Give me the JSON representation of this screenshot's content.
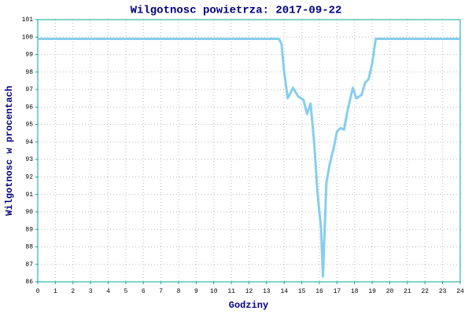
{
  "chart_data": {
    "type": "line",
    "title": "Wilgotnosc powietrza: 2017-09-22",
    "x_label": "Godziny",
    "y_label": "Wilgotnosc w procentach",
    "series": [
      {
        "name": "Wilgotnosc",
        "color": "#87ceeb",
        "x": [
          0,
          13.7,
          13.85,
          14.0,
          14.2,
          14.5,
          14.8,
          15.1,
          15.3,
          15.5,
          15.7,
          15.9,
          16.1,
          16.2,
          16.4,
          16.6,
          16.8,
          17.0,
          17.2,
          17.4,
          17.6,
          17.9,
          18.1,
          18.4,
          18.6,
          18.8,
          19.0,
          19.2,
          24
        ],
        "values": [
          99.9,
          99.9,
          99.6,
          98,
          96.5,
          97.1,
          96.6,
          96.4,
          95.6,
          96.2,
          94,
          91,
          89,
          86.3,
          91.7,
          92.8,
          93.6,
          94.6,
          94.8,
          94.7,
          95.8,
          97.1,
          96.5,
          96.7,
          97.4,
          97.6,
          98.5,
          99.9,
          99.9
        ]
      }
    ],
    "xlim": [
      0,
      24
    ],
    "xticks": [
      0,
      1,
      2,
      3,
      4,
      5,
      6,
      7,
      8,
      9,
      10,
      11,
      12,
      13,
      14,
      15,
      16,
      17,
      18,
      19,
      20,
      21,
      22,
      23,
      24
    ],
    "ylim": [
      86,
      101
    ],
    "yticks": [
      86,
      87,
      88,
      89,
      90,
      91,
      92,
      93,
      94,
      95,
      96,
      97,
      98,
      99,
      100,
      101
    ],
    "grid": true
  }
}
